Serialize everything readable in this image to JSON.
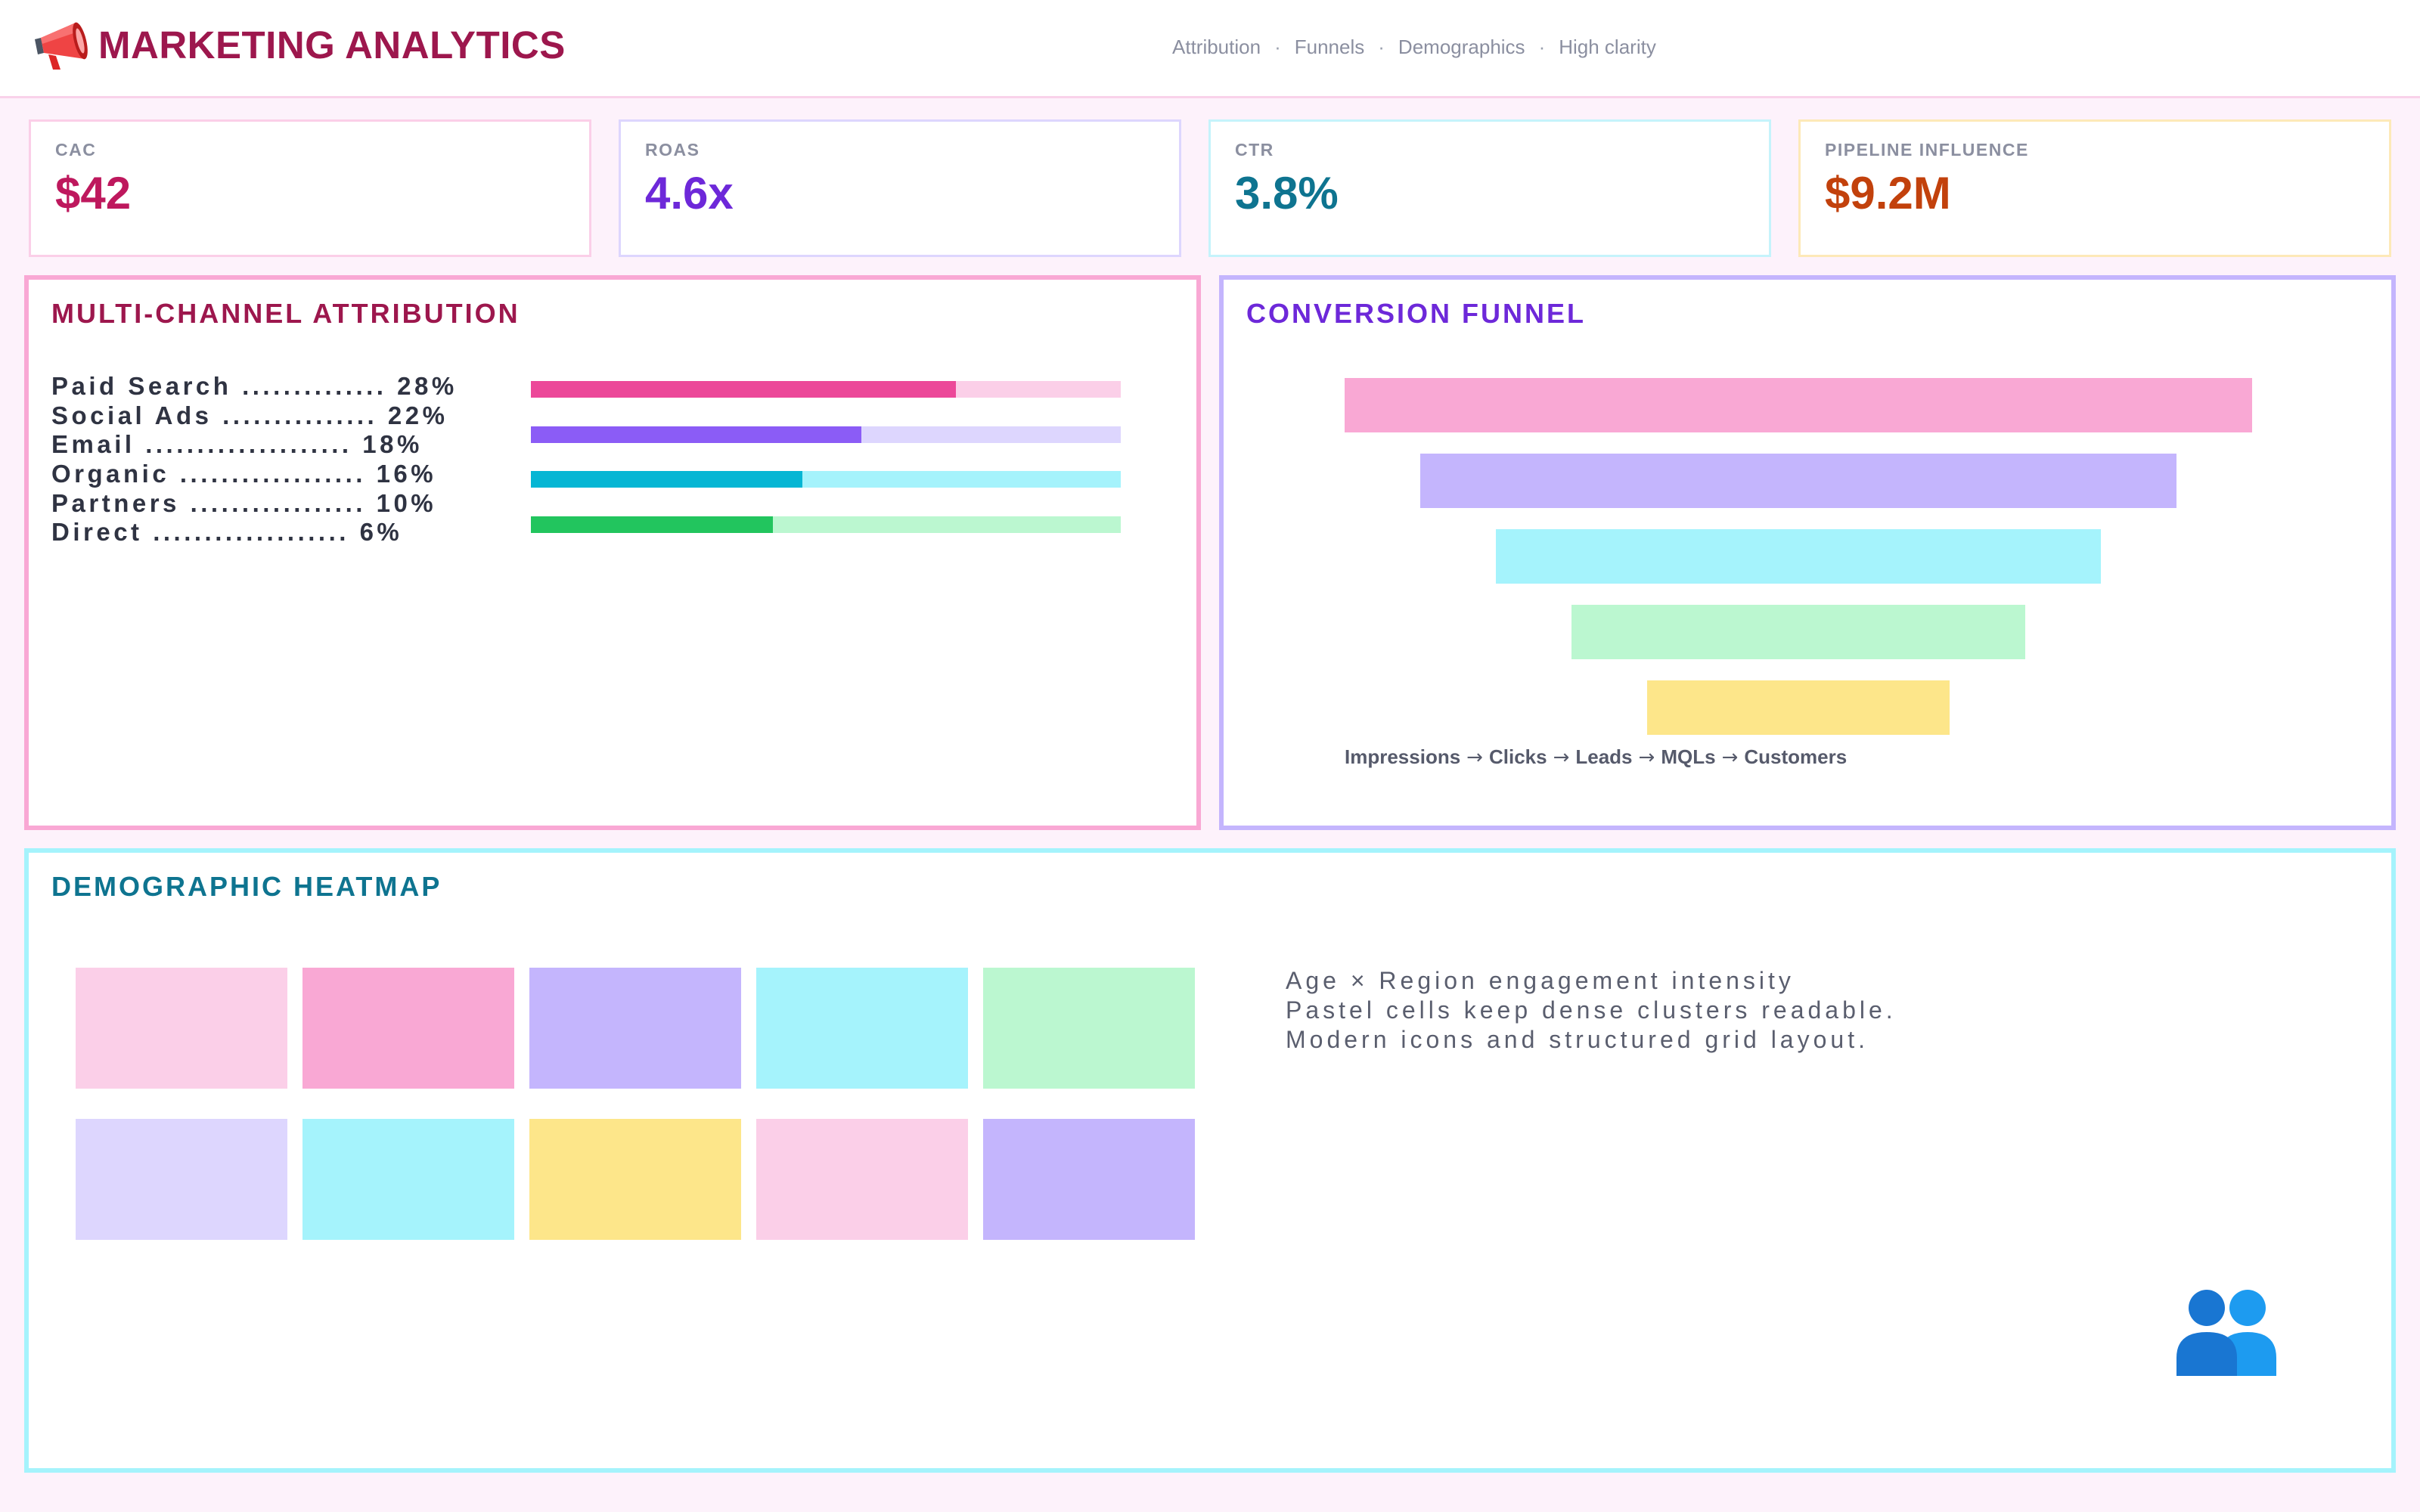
{
  "header": {
    "title": "MARKETING ANALYTICS",
    "logo_icon": "megaphone-icon",
    "nav": [
      "Attribution",
      "Funnels",
      "Demographics",
      "High clarity"
    ],
    "nav_separator": "·"
  },
  "kpis": [
    {
      "label": "CAC",
      "value": "$42",
      "color": "#be185d",
      "border": "#fbcfe8"
    },
    {
      "label": "ROAS",
      "value": "4.6x",
      "color": "#6d28d9",
      "border": "#ddd6fe"
    },
    {
      "label": "CTR",
      "value": "3.8%",
      "color": "#0e7490",
      "border": "#c5f3fb"
    },
    {
      "label": "PIPELINE INFLUENCE",
      "value": "$9.2M",
      "color": "#c2410c",
      "border": "#fde9b8"
    }
  ],
  "attribution": {
    "title": "MULTI-CHANNEL ATTRIBUTION",
    "title_color": "#9d174d",
    "border": "#f9a8d4",
    "rows": [
      {
        "label": "Paid Search .............. 28%",
        "share": 0.72,
        "fill": "#ec4899",
        "track": "#fbcfe8"
      },
      {
        "label": "Social Ads ............... 22%",
        "share": 0.56,
        "fill": "#8b5cf6",
        "track": "#ddd6fe"
      },
      {
        "label": "Email .................... 18%",
        "share": 0.46,
        "fill": "#06b6d4",
        "track": "#a5f3fc"
      },
      {
        "label": "Organic .................. 16%",
        "share": 0.41,
        "fill": "#22c55e",
        "track": "#bbf7d0"
      },
      {
        "label": "Partners ................. 10%"
      },
      {
        "label": "Direct ................... 6%"
      }
    ]
  },
  "funnel": {
    "title": "CONVERSION FUNNEL",
    "title_color": "#6d28d9",
    "border": "#c4b5fd",
    "stages": [
      {
        "name": "Impressions",
        "relative_width": 1.0,
        "color": "#f9a8d4"
      },
      {
        "name": "Clicks",
        "relative_width": 0.833,
        "color": "#c4b5fd"
      },
      {
        "name": "Leads",
        "relative_width": 0.667,
        "color": "#a5f3fc"
      },
      {
        "name": "MQLs",
        "relative_width": 0.5,
        "color": "#bbf7d0"
      },
      {
        "name": "Customers",
        "relative_width": 0.333,
        "color": "#fde68a"
      }
    ],
    "arrow": "→"
  },
  "heatmap": {
    "title": "DEMOGRAPHIC HEATMAP",
    "title_color": "#0e7490",
    "border": "#a5f3fc",
    "rows": [
      [
        "#fbcfe8",
        "#f9a8d4",
        "#c4b5fd",
        "#a5f3fc",
        "#bbf7d0"
      ],
      [
        "#ddd6fe",
        "#a5f3fc",
        "#fde68a",
        "#fbcfe8",
        "#c4b5fd"
      ]
    ],
    "notes": [
      "Age × Region engagement intensity",
      "Pastel cells keep dense clusters readable.",
      "Modern icons and structured grid layout."
    ],
    "icon": "users-icon"
  }
}
